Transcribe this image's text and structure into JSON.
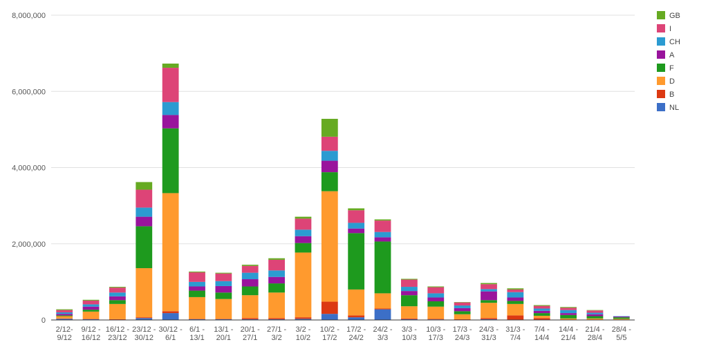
{
  "chart_data": {
    "type": "bar",
    "stacked": true,
    "title": "",
    "xlabel": "",
    "ylabel": "",
    "ylim": [
      0,
      8000000
    ],
    "yticks": [
      "0",
      "2,000,000",
      "4,000,000",
      "6,000,000",
      "8,000,000"
    ],
    "ytick_values": [
      0,
      2000000,
      4000000,
      6000000,
      8000000
    ],
    "grid": true,
    "legend_position": "right",
    "categories": [
      [
        "2/12-",
        "9/12"
      ],
      [
        "9/12 -",
        "16/12"
      ],
      [
        "16/12 -",
        "23/12"
      ],
      [
        "23/12 -",
        "30/12"
      ],
      [
        "30/12 -",
        "6/1"
      ],
      [
        "6/1 -",
        "13/1"
      ],
      [
        "13/1 -",
        "20/1"
      ],
      [
        "20/1 -",
        "27/1"
      ],
      [
        "27/1 -",
        "3/2"
      ],
      [
        "3/2 -",
        "10/2"
      ],
      [
        "10/2 -",
        "17/2"
      ],
      [
        "17/2 -",
        "24/2"
      ],
      [
        "24/2 -",
        "3/3"
      ],
      [
        "3/3 -",
        "10/3"
      ],
      [
        "10/3 -",
        "17/3"
      ],
      [
        "17/3 -",
        "24/3"
      ],
      [
        "24/3 -",
        "31/3"
      ],
      [
        "31/3 -",
        "7/4"
      ],
      [
        "7/4 -",
        "14/4"
      ],
      [
        "14/4 -",
        "21/4"
      ],
      [
        "21/4 -",
        "28/4"
      ],
      [
        "28/4 -",
        "5/5"
      ]
    ],
    "series": [
      {
        "name": "NL",
        "color": "#3c6fc7",
        "values": [
          30000,
          20000,
          10000,
          50000,
          180000,
          20000,
          20000,
          20000,
          20000,
          30000,
          160000,
          70000,
          280000,
          20000,
          15000,
          10000,
          20000,
          10000,
          10000,
          5000,
          5000,
          5000
        ]
      },
      {
        "name": "B",
        "color": "#dc3912",
        "values": [
          10000,
          10000,
          10000,
          20000,
          50000,
          10000,
          10000,
          30000,
          30000,
          40000,
          320000,
          50000,
          20000,
          20000,
          15000,
          10000,
          30000,
          110000,
          40000,
          5000,
          5000,
          5000
        ]
      },
      {
        "name": "D",
        "color": "#ff9a2e",
        "values": [
          60000,
          190000,
          400000,
          1290000,
          3100000,
          570000,
          520000,
          600000,
          670000,
          1700000,
          2900000,
          680000,
          400000,
          320000,
          320000,
          130000,
          400000,
          300000,
          60000,
          30000,
          30000,
          20000
        ]
      },
      {
        "name": "F",
        "color": "#1e9a1e",
        "values": [
          20000,
          50000,
          100000,
          1100000,
          1700000,
          170000,
          170000,
          230000,
          240000,
          250000,
          500000,
          1480000,
          1360000,
          290000,
          140000,
          80000,
          70000,
          80000,
          70000,
          90000,
          60000,
          40000
        ]
      },
      {
        "name": "A",
        "color": "#99149c",
        "values": [
          40000,
          80000,
          100000,
          250000,
          350000,
          110000,
          170000,
          190000,
          170000,
          180000,
          300000,
          120000,
          110000,
          110000,
          100000,
          80000,
          230000,
          90000,
          60000,
          50000,
          50000,
          20000
        ]
      },
      {
        "name": "CH",
        "color": "#2b9bd1",
        "values": [
          40000,
          60000,
          100000,
          240000,
          340000,
          120000,
          130000,
          170000,
          170000,
          170000,
          260000,
          150000,
          140000,
          110000,
          110000,
          70000,
          60000,
          140000,
          60000,
          80000,
          40000,
          10000
        ]
      },
      {
        "name": "I",
        "color": "#dd4477",
        "values": [
          60000,
          100000,
          130000,
          470000,
          900000,
          250000,
          200000,
          180000,
          280000,
          290000,
          370000,
          330000,
          300000,
          190000,
          160000,
          80000,
          130000,
          70000,
          70000,
          60000,
          60000,
          0
        ]
      },
      {
        "name": "GB",
        "color": "#66aa22",
        "values": [
          20000,
          20000,
          20000,
          200000,
          110000,
          20000,
          20000,
          30000,
          40000,
          50000,
          470000,
          50000,
          30000,
          20000,
          20000,
          10000,
          30000,
          30000,
          20000,
          20000,
          10000,
          0
        ]
      }
    ]
  }
}
